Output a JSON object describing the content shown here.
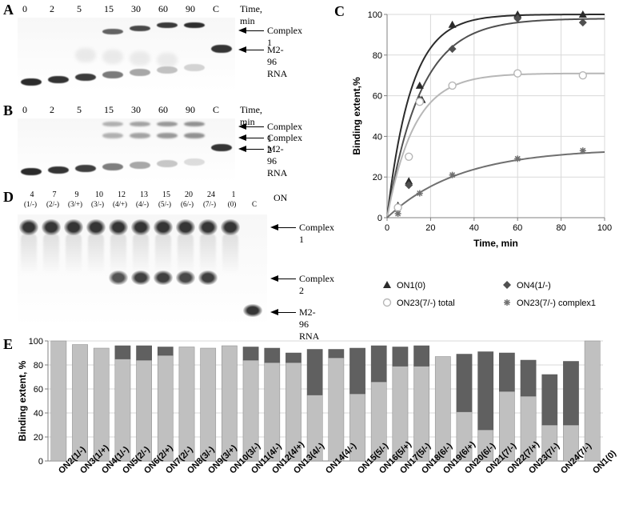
{
  "colors": {
    "bg": "#ffffff",
    "axis": "#808080",
    "grid": "#d9d9d9",
    "legendText": "#000000",
    "bar_light": "#c0c0c0",
    "bar_dark": "#606060",
    "gel_dark": "#2b2b2b",
    "gel_mid": "#6a6a6a",
    "gel_light": "#b8b8b8"
  },
  "panelLetters": {
    "A": "A",
    "B": "B",
    "C": "C",
    "D": "D",
    "E": "E"
  },
  "panelA": {
    "timeLabels": [
      "0",
      "2",
      "5",
      "15",
      "30",
      "60",
      "90",
      "C"
    ],
    "axisLabel": "Time, min",
    "arrow1": "Complex 1",
    "arrow2": "M2-96 RNA"
  },
  "panelB": {
    "timeLabels": [
      "0",
      "2",
      "5",
      "15",
      "30",
      "60",
      "90",
      "C"
    ],
    "axisLabel": "Time, min",
    "arrow1": "Complex 1",
    "arrow2": "Complex 2",
    "arrow3": "M2-96 RNA"
  },
  "panelD": {
    "topNums": [
      "4",
      "7",
      "9",
      "10",
      "12",
      "13",
      "15",
      "20",
      "24",
      "1",
      ""
    ],
    "subLabels": [
      "(1/-)",
      "(2/-)",
      "(3/+)",
      "(3/-)",
      "(4/+)",
      "(4/-)",
      "(5/-)",
      "(6/-)",
      "(7/-)",
      "(0)",
      "C"
    ],
    "onLabel": "ON",
    "arrow1": "Complex 1",
    "arrow2": "Complex 2",
    "arrow3": "M2-96 RNA"
  },
  "chartC": {
    "type": "line",
    "xlabel": "Time, min",
    "ylabel": "Binding extent,%",
    "xlim": [
      0,
      100
    ],
    "ylim": [
      0,
      100
    ],
    "xticks": [
      0,
      20,
      40,
      60,
      80,
      100
    ],
    "yticks": [
      0,
      20,
      40,
      60,
      80,
      100
    ],
    "fontsize_label": 12,
    "series": [
      {
        "name": "ON1(0)",
        "marker": "triangle",
        "color": "#2b2b2b",
        "x": [
          5,
          10,
          15,
          16,
          30,
          60,
          90
        ],
        "y": [
          6,
          18,
          65,
          58,
          95,
          100,
          100
        ]
      },
      {
        "name": "ON4(1/-)",
        "marker": "diamond",
        "color": "#505050",
        "x": [
          5,
          10,
          15,
          30,
          60,
          90
        ],
        "y": [
          5,
          16,
          58,
          83,
          98,
          96
        ]
      },
      {
        "name": "ON23(7/-) total",
        "marker": "circle",
        "color": "#b7b7b7",
        "x": [
          5,
          10,
          15,
          30,
          60,
          90
        ],
        "y": [
          5,
          30,
          57,
          65,
          71,
          70
        ]
      },
      {
        "name": "ON23(7/-) complex1",
        "marker": "asterisk",
        "color": "#707070",
        "x": [
          5,
          15,
          30,
          60,
          90
        ],
        "y": [
          2,
          12,
          21,
          29,
          33
        ]
      }
    ]
  },
  "chartE": {
    "type": "stacked-bar",
    "ylabel": "Binding extent, %",
    "ylim": [
      0,
      100
    ],
    "yticks": [
      0,
      20,
      40,
      60,
      80,
      100
    ],
    "bar_width": 0.72,
    "categories": [
      "ON2(1/-)",
      "ON3(1/+)",
      "ON4(1/-)",
      "ON5(2/-)",
      "ON6(2/+)",
      "ON7(2/-)",
      "ON8(3/-)",
      "ON9(3/+)",
      "ON10(3/-)",
      "ON11(4/-)",
      "ON12(4/+)",
      "ON13(4/-)",
      "ON14(4/-)",
      "ON15(5/-)",
      "ON16(5/+)",
      "ON17(5/-)",
      "ON18(6/-)",
      "ON19(6/+)",
      "ON20(6/-)",
      "ON21(7/-)",
      "ON22(7/+)",
      "ON23(7/-)",
      "ON24(7/-)",
      "ON1(0)"
    ],
    "light": [
      100,
      97,
      94,
      85,
      84,
      88,
      95,
      94,
      96,
      84,
      82,
      82,
      55,
      86,
      56,
      66,
      79,
      79,
      87,
      41,
      26,
      58,
      54,
      30,
      30,
      100
    ],
    "dark": [
      0,
      0,
      0,
      11,
      12,
      7,
      0,
      0,
      0,
      11,
      12,
      8,
      38,
      7,
      38,
      30,
      16,
      17,
      0,
      48,
      65,
      32,
      30,
      42,
      53,
      0
    ],
    "note_double_13_24": "indices 12 and 23&24 reflect paired thin bars for ON13 and ON24 as in source"
  }
}
